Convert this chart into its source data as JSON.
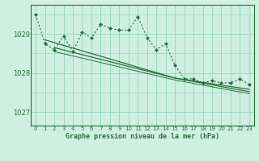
{
  "title": "Graphe pression niveau de la mer (hPa)",
  "bg_color": "#cdf0e0",
  "grid_color": "#9dd8c0",
  "line_color": "#2d6e3e",
  "xlim": [
    -0.5,
    23.5
  ],
  "ylim": [
    1026.65,
    1029.75
  ],
  "yticks": [
    1027,
    1028,
    1029
  ],
  "xticks": [
    0,
    1,
    2,
    3,
    4,
    5,
    6,
    7,
    8,
    9,
    10,
    11,
    12,
    13,
    14,
    15,
    16,
    17,
    18,
    19,
    20,
    21,
    22,
    23
  ],
  "hours": [
    0,
    1,
    2,
    3,
    4,
    5,
    6,
    7,
    8,
    9,
    10,
    11,
    12,
    13,
    14,
    15,
    16,
    17,
    18,
    19,
    20,
    21,
    22,
    23
  ],
  "pressure_main": [
    1029.5,
    1028.75,
    1028.6,
    1028.95,
    1028.55,
    1029.05,
    1028.9,
    1029.25,
    1029.15,
    1029.1,
    1029.1,
    1029.45,
    1028.9,
    1028.6,
    1028.75,
    1028.2,
    1027.85,
    1027.85,
    1027.75,
    1027.8,
    1027.75,
    1027.75,
    1027.85,
    1027.7
  ],
  "trend1_x": [
    1,
    15,
    23
  ],
  "trend1_y": [
    1028.85,
    1027.87,
    1027.58
  ],
  "trend2_x": [
    2,
    15,
    23
  ],
  "trend2_y": [
    1028.65,
    1027.87,
    1027.52
  ],
  "trend3_x": [
    2,
    15,
    23
  ],
  "trend3_y": [
    1028.55,
    1027.82,
    1027.47
  ]
}
